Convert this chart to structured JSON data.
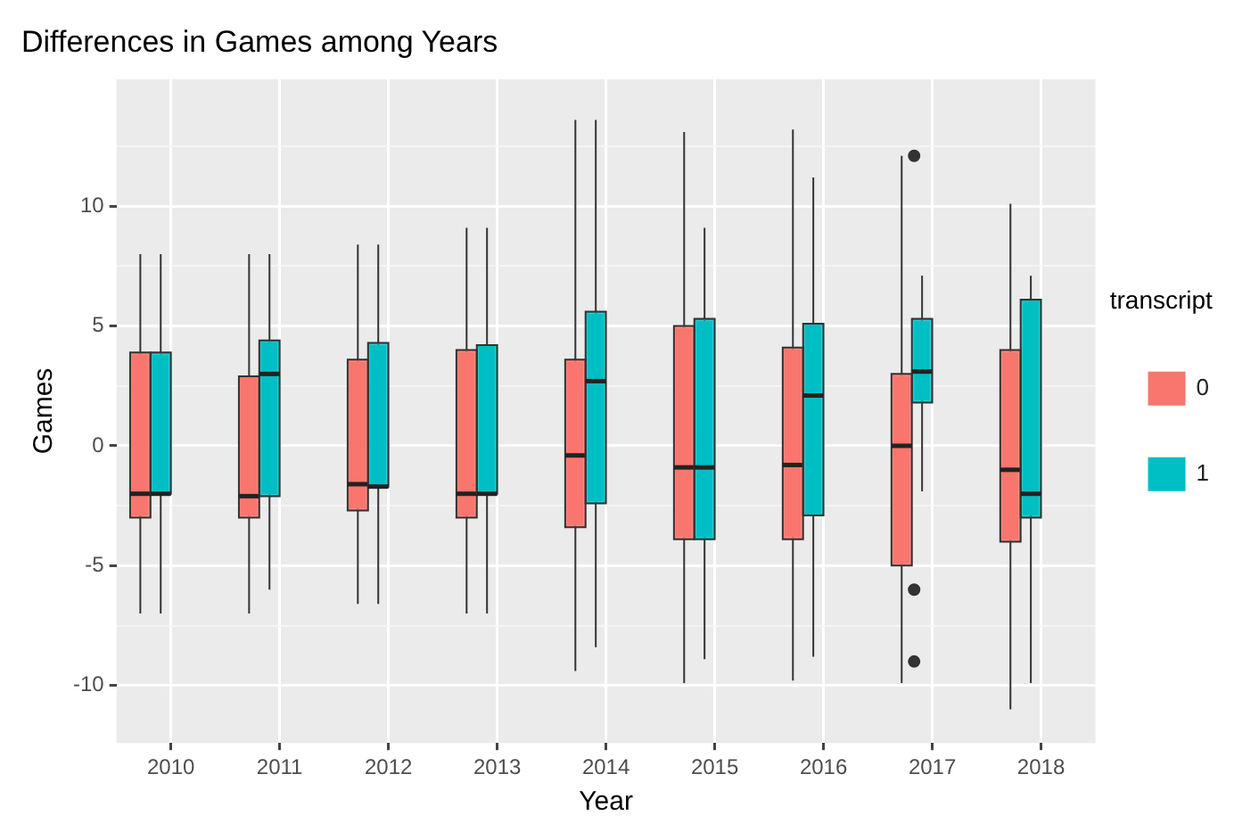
{
  "chart_data": {
    "type": "box",
    "title": "Differences in Games among Years",
    "xlabel": "Year",
    "ylabel": "Games",
    "legend_title": "transcript",
    "legend": "right",
    "grid": true,
    "categories": [
      "2010",
      "2011",
      "2012",
      "2013",
      "2014",
      "2015",
      "2016",
      "2017",
      "2018"
    ],
    "ylim": [
      -12.4,
      15.3
    ],
    "yticks": [
      -10,
      {
        "value": -7.5,
        "label": null
      },
      -5,
      {
        "value": -2.5,
        "label": null
      },
      0,
      {
        "value": 2.5,
        "label": null
      },
      5,
      {
        "value": 7.5,
        "label": null
      },
      10,
      {
        "value": 12.5,
        "label": null
      }
    ],
    "series": [
      {
        "name": "0",
        "color": "#f8766d",
        "boxes": [
          {
            "low": -7,
            "q1": -3,
            "median": -2,
            "q3": 3.9,
            "high": 8
          },
          {
            "low": -7,
            "q1": -3,
            "median": -2.1,
            "q3": 2.9,
            "high": 8
          },
          {
            "low": -6.6,
            "q1": -2.7,
            "median": -1.6,
            "q3": 3.6,
            "high": 8.4
          },
          {
            "low": -7,
            "q1": -3,
            "median": -2,
            "q3": 4,
            "high": 9.1
          },
          {
            "low": -9.4,
            "q1": -3.4,
            "median": -0.4,
            "q3": 3.6,
            "high": 13.6
          },
          {
            "low": -9.9,
            "q1": -3.9,
            "median": -0.9,
            "q3": 5,
            "high": 13.1
          },
          {
            "low": -9.8,
            "q1": -3.9,
            "median": -0.8,
            "q3": 4.1,
            "high": 13.2
          },
          {
            "low": -9.9,
            "q1": -5,
            "median": 0,
            "q3": 3,
            "high": 12.1
          },
          {
            "low": -11,
            "q1": -4,
            "median": -1,
            "q3": 4,
            "high": 10.1
          }
        ]
      },
      {
        "name": "1",
        "color": "#00bfc4",
        "boxes": [
          {
            "low": -7,
            "q1": -2,
            "median": -2,
            "q3": 3.9,
            "high": 8
          },
          {
            "low": -6,
            "q1": -2.1,
            "median": 3,
            "q3": 4.4,
            "high": 8
          },
          {
            "low": -6.6,
            "q1": -1.7,
            "median": -1.7,
            "q3": 4.3,
            "high": 8.4
          },
          {
            "low": -7,
            "q1": -2,
            "median": -2,
            "q3": 4.2,
            "high": 9.1
          },
          {
            "low": -8.4,
            "q1": -2.4,
            "median": 2.7,
            "q3": 5.6,
            "high": 13.6
          },
          {
            "low": -8.9,
            "q1": -3.9,
            "median": -0.9,
            "q3": 5.3,
            "high": 9.1
          },
          {
            "low": -8.8,
            "q1": -2.9,
            "median": 2.1,
            "q3": 5.1,
            "high": 11.2
          },
          {
            "low": -1.9,
            "q1": 1.8,
            "median": 3.1,
            "q3": 5.3,
            "high": 7.1,
            "outliers": [
              12.1,
              -6,
              -9
            ]
          },
          {
            "low": -9.9,
            "q1": -3,
            "median": -2,
            "q3": 6.1,
            "high": 7.1
          }
        ]
      }
    ]
  }
}
